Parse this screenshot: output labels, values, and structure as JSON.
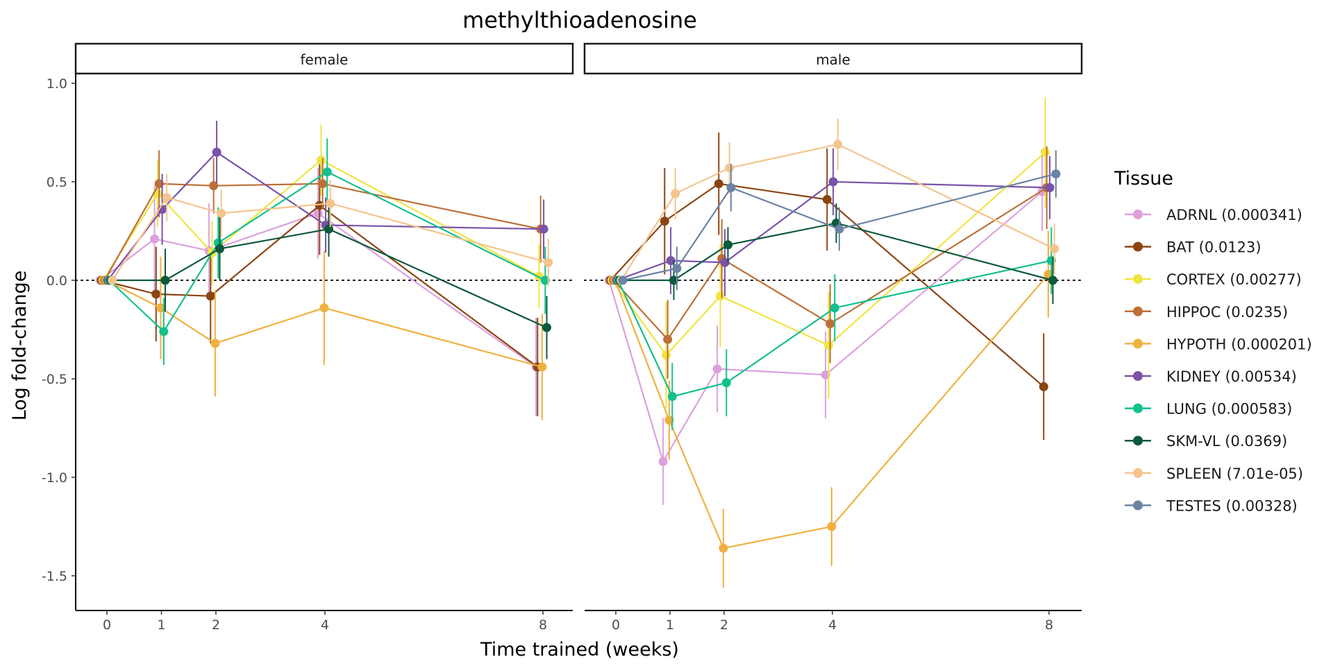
{
  "chart_data": {
    "type": "line",
    "title": "methylthioadenosine",
    "xlabel": "Time trained (weeks)",
    "ylabel": "Log fold-change",
    "x_ticks": [
      0,
      1,
      2,
      4,
      8
    ],
    "x_tick_labels": [
      "0",
      "1",
      "2",
      "4",
      "8"
    ],
    "y_ticks": [
      1.0,
      0.5,
      0.0,
      -0.5,
      -1.0,
      -1.5
    ],
    "y_tick_labels": [
      "1.0",
      "0.5",
      "0.0",
      "-0.5",
      "-1.0",
      "-1.5"
    ],
    "ylim": [
      -1.68,
      1.05
    ],
    "reference_line": 0,
    "legend_title": "Tissue",
    "legend_position": "right",
    "panels": [
      {
        "label": "female",
        "series": [
          {
            "name": "ADRNL (0.000341)",
            "color": "#DDA0DD",
            "points": [
              [
                0,
                0,
                0
              ],
              [
                1,
                0.21,
                0.27
              ],
              [
                2,
                0.15,
                0.24
              ],
              [
                4,
                0.34,
                0.23
              ],
              [
                8,
                -0.44,
                0.25
              ]
            ]
          },
          {
            "name": "BAT (0.0123)",
            "color": "#8B4513",
            "points": [
              [
                0,
                0,
                0
              ],
              [
                1,
                -0.07,
                0.24
              ],
              [
                2,
                -0.08,
                0.24
              ],
              [
                4,
                0.38,
                0.25
              ],
              [
                8,
                -0.44,
                0.25
              ]
            ]
          },
          {
            "name": "CORTEX (0.00277)",
            "color": "#F0E442",
            "points": [
              [
                0,
                0,
                0
              ],
              [
                1,
                0.44,
                0.17
              ],
              [
                2,
                0.14,
                0.16
              ],
              [
                4,
                0.61,
                0.18
              ],
              [
                8,
                0.02,
                0.16
              ]
            ]
          },
          {
            "name": "HIPPOC (0.0235)",
            "color": "#BC6F36",
            "points": [
              [
                0,
                0,
                0
              ],
              [
                1,
                0.49,
                0.17
              ],
              [
                2,
                0.48,
                0.14
              ],
              [
                4,
                0.49,
                0.13
              ],
              [
                8,
                0.26,
                0.17
              ]
            ]
          },
          {
            "name": "HYPOTH (0.000201)",
            "color": "#F0B040",
            "points": [
              [
                0,
                0,
                0
              ],
              [
                1,
                -0.14,
                0.26
              ],
              [
                2,
                -0.32,
                0.27
              ],
              [
                4,
                -0.14,
                0.29
              ],
              [
                8,
                -0.44,
                0.27
              ]
            ]
          },
          {
            "name": "KIDNEY (0.00534)",
            "color": "#7A52A8",
            "points": [
              [
                0,
                0,
                0
              ],
              [
                1,
                0.36,
                0.18
              ],
              [
                2,
                0.65,
                0.16
              ],
              [
                4,
                0.28,
                0.14
              ],
              [
                8,
                0.26,
                0.15
              ]
            ]
          },
          {
            "name": "LUNG (0.000583)",
            "color": "#13C08E",
            "points": [
              [
                0,
                0,
                0
              ],
              [
                1,
                -0.26,
                0.17
              ],
              [
                2,
                0.19,
                0.18
              ],
              [
                4,
                0.55,
                0.17
              ],
              [
                8,
                0.0,
                0.17
              ]
            ]
          },
          {
            "name": "SKM-VL (0.0369)",
            "color": "#0B5A3B",
            "points": [
              [
                0,
                0,
                0
              ],
              [
                1,
                0.0,
                0.16
              ],
              [
                2,
                0.16,
                0.16
              ],
              [
                4,
                0.26,
                0.14
              ],
              [
                8,
                -0.24,
                0.16
              ]
            ]
          },
          {
            "name": "SPLEEN (7.01e-05)",
            "color": "#F4C48C",
            "points": [
              [
                0,
                0,
                0
              ],
              [
                1,
                0.42,
                0.12
              ],
              [
                2,
                0.34,
                0.12
              ],
              [
                4,
                0.39,
                0.12
              ],
              [
                8,
                0.09,
                0.12
              ]
            ]
          }
        ]
      },
      {
        "label": "male",
        "series": [
          {
            "name": "ADRNL (0.000341)",
            "color": "#DDA0DD",
            "points": [
              [
                0,
                0,
                0
              ],
              [
                1,
                -0.92,
                0.22
              ],
              [
                2,
                -0.45,
                0.22
              ],
              [
                4,
                -0.48,
                0.22
              ],
              [
                8,
                0.45,
                0.2
              ]
            ]
          },
          {
            "name": "BAT (0.0123)",
            "color": "#8B4513",
            "points": [
              [
                0,
                0,
                0
              ],
              [
                1,
                0.3,
                0.27
              ],
              [
                2,
                0.49,
                0.26
              ],
              [
                4,
                0.41,
                0.26
              ],
              [
                8,
                -0.54,
                0.27
              ]
            ]
          },
          {
            "name": "CORTEX (0.00277)",
            "color": "#F0E442",
            "points": [
              [
                0,
                0,
                0
              ],
              [
                1,
                -0.38,
                0.27
              ],
              [
                2,
                -0.08,
                0.26
              ],
              [
                4,
                -0.33,
                0.27
              ],
              [
                8,
                0.65,
                0.28
              ]
            ]
          },
          {
            "name": "HIPPOC (0.0235)",
            "color": "#BC6F36",
            "points": [
              [
                0,
                0,
                0
              ],
              [
                1,
                -0.3,
                0.2
              ],
              [
                2,
                0.11,
                0.2
              ],
              [
                4,
                -0.22,
                0.2
              ],
              [
                8,
                0.47,
                0.21
              ]
            ]
          },
          {
            "name": "HYPOTH (0.000201)",
            "color": "#F0B040",
            "points": [
              [
                0,
                0,
                0
              ],
              [
                1,
                -0.71,
                0.2
              ],
              [
                2,
                -1.36,
                0.2
              ],
              [
                4,
                -1.25,
                0.2
              ],
              [
                8,
                0.03,
                0.22
              ]
            ]
          },
          {
            "name": "KIDNEY (0.00534)",
            "color": "#7A52A8",
            "points": [
              [
                0,
                0,
                0
              ],
              [
                1,
                0.1,
                0.17
              ],
              [
                2,
                0.09,
                0.17
              ],
              [
                4,
                0.5,
                0.17
              ],
              [
                8,
                0.47,
                0.16
              ]
            ]
          },
          {
            "name": "LUNG (0.000583)",
            "color": "#13C08E",
            "points": [
              [
                0,
                0,
                0
              ],
              [
                1,
                -0.59,
                0.17
              ],
              [
                2,
                -0.52,
                0.17
              ],
              [
                4,
                -0.14,
                0.17
              ],
              [
                8,
                0.1,
                0.17
              ]
            ]
          },
          {
            "name": "SKM-VL (0.0369)",
            "color": "#0B5A3B",
            "points": [
              [
                0,
                0,
                0
              ],
              [
                1,
                0.0,
                0.1
              ],
              [
                2,
                0.18,
                0.09
              ],
              [
                4,
                0.29,
                0.1
              ],
              [
                8,
                0.0,
                0.12
              ]
            ]
          },
          {
            "name": "SPLEEN (7.01e-05)",
            "color": "#F4C48C",
            "points": [
              [
                0,
                0,
                0
              ],
              [
                1,
                0.44,
                0.13
              ],
              [
                2,
                0.57,
                0.13
              ],
              [
                4,
                0.69,
                0.13
              ],
              [
                8,
                0.16,
                0.13
              ]
            ]
          },
          {
            "name": "TESTES (0.00328)",
            "color": "#6B84A3",
            "points": [
              [
                0,
                0,
                0
              ],
              [
                1,
                0.06,
                0.11
              ],
              [
                2,
                0.47,
                0.12
              ],
              [
                4,
                0.26,
                0.11
              ],
              [
                8,
                0.54,
                0.12
              ]
            ]
          }
        ]
      }
    ],
    "legend": [
      {
        "name": "ADRNL (0.000341)",
        "color": "#DDA0DD"
      },
      {
        "name": "BAT (0.0123)",
        "color": "#8B4513"
      },
      {
        "name": "CORTEX (0.00277)",
        "color": "#F0E442"
      },
      {
        "name": "HIPPOC (0.0235)",
        "color": "#BC6F36"
      },
      {
        "name": "HYPOTH (0.000201)",
        "color": "#F0B040"
      },
      {
        "name": "KIDNEY (0.00534)",
        "color": "#7A52A8"
      },
      {
        "name": "LUNG (0.000583)",
        "color": "#13C08E"
      },
      {
        "name": "SKM-VL (0.0369)",
        "color": "#0B5A3B"
      },
      {
        "name": "SPLEEN (7.01e-05)",
        "color": "#F4C48C"
      },
      {
        "name": "TESTES (0.00328)",
        "color": "#6B84A3"
      }
    ]
  }
}
